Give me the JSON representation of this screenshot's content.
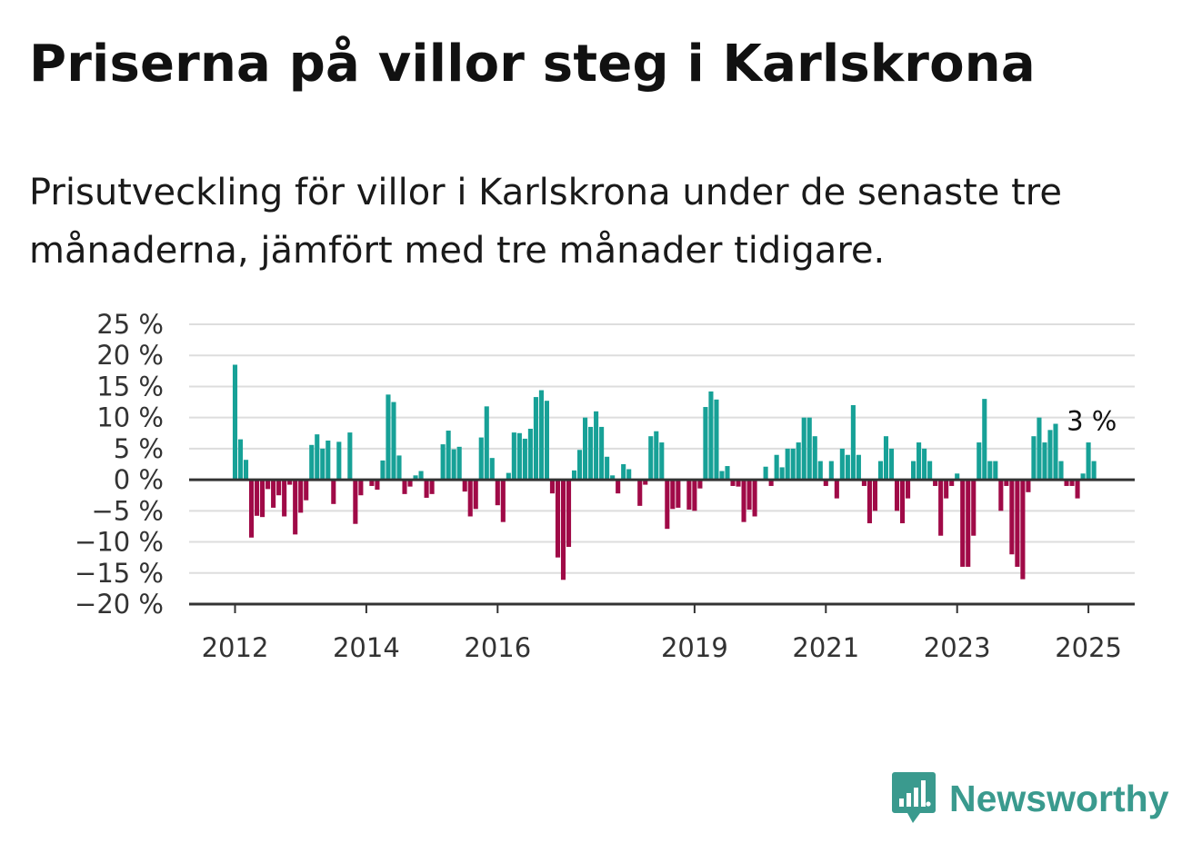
{
  "title": "Priserna på villor steg i Karlskrona",
  "subtitle": "Prisutveckling för villor i Karlskrona under de senaste tre månaderna, jämfört med tre månader tidigare.",
  "brand": {
    "name": "Newsworthy",
    "color": "#3a9a8e",
    "icon": "newsworthy-logo-icon"
  },
  "colors": {
    "positive": "#17a197",
    "negative": "#a00a47",
    "grid": "#dddddd",
    "axis": "#333333"
  },
  "chart_data": {
    "type": "bar",
    "ylim": [
      -20,
      25
    ],
    "y_ticks": [
      25,
      20,
      15,
      10,
      5,
      0,
      -5,
      -10,
      -15,
      -20
    ],
    "y_tick_labels": [
      "25 %",
      "20 %",
      "15 %",
      "10 %",
      "5 %",
      "0 %",
      "−5 %",
      "−10 %",
      "−15 %",
      "−20 %"
    ],
    "x_ticks": [
      {
        "label": "2012",
        "x": 2012.0
      },
      {
        "label": "2014",
        "x": 2014.0
      },
      {
        "label": "2016",
        "x": 2016.0
      },
      {
        "label": "2019",
        "x": 2019.0
      },
      {
        "label": "2021",
        "x": 2021.0
      },
      {
        "label": "2023",
        "x": 2023.0
      },
      {
        "label": "2025",
        "x": 2025.0
      }
    ],
    "x_start": 2012.0,
    "x_step_months": 1,
    "values": [
      18.5,
      6.5,
      3.2,
      -9.3,
      -5.8,
      -6.0,
      -1.5,
      -4.5,
      -2.5,
      -5.9,
      -0.8,
      -8.8,
      -5.3,
      -3.3,
      5.6,
      7.3,
      5.0,
      6.3,
      -3.9,
      6.1,
      0.0,
      7.6,
      -7.1,
      -2.5,
      0.0,
      -1.0,
      -1.6,
      3.1,
      13.7,
      12.5,
      3.9,
      -2.3,
      -1.1,
      0.7,
      1.4,
      -2.9,
      -2.3,
      0.0,
      5.7,
      7.9,
      4.9,
      5.3,
      -1.9,
      -5.9,
      -4.7,
      6.8,
      11.8,
      3.5,
      -4.1,
      -6.8,
      1.1,
      7.6,
      7.5,
      6.6,
      8.2,
      13.3,
      14.4,
      12.7,
      -2.2,
      -12.5,
      -16.1,
      -10.8,
      1.5,
      4.8,
      10.0,
      8.5,
      11.0,
      8.5,
      3.7,
      0.7,
      -2.2,
      2.5,
      1.7,
      0.0,
      -4.2,
      -0.8,
      7.0,
      7.8,
      6.0,
      -7.9,
      -4.7,
      -4.5,
      0.0,
      -4.8,
      -5.0,
      -1.4,
      11.7,
      14.2,
      12.9,
      1.4,
      2.2,
      -1.0,
      -1.1,
      -6.8,
      -4.8,
      -5.9,
      0.0,
      2.1,
      -1.0,
      4.0,
      2.0,
      5.0,
      5.0,
      6.0,
      10.0,
      10.0,
      7.0,
      3.0,
      -1.0,
      3.0,
      -3.0,
      5.0,
      4.0,
      12.0,
      4.0,
      -1.0,
      -7.0,
      -5.0,
      3.0,
      7.0,
      5.0,
      -5.0,
      -7.0,
      -3.0,
      3.0,
      6.0,
      5.0,
      3.0,
      -1.0,
      -9.0,
      -3.0,
      -1.0,
      1.0,
      -14.0,
      -14.0,
      -9.0,
      6.0,
      13.0,
      3.0,
      3.0,
      -5.0,
      -1.0,
      -12.0,
      -14.0,
      -16.0,
      -2.0,
      7.0,
      10.0,
      6.0,
      8.0,
      9.0,
      3.0,
      -1.0,
      -1.0,
      -3.0,
      1.0,
      6.0,
      3.0
    ],
    "annotation": {
      "text": "3 %",
      "value": 3
    }
  }
}
